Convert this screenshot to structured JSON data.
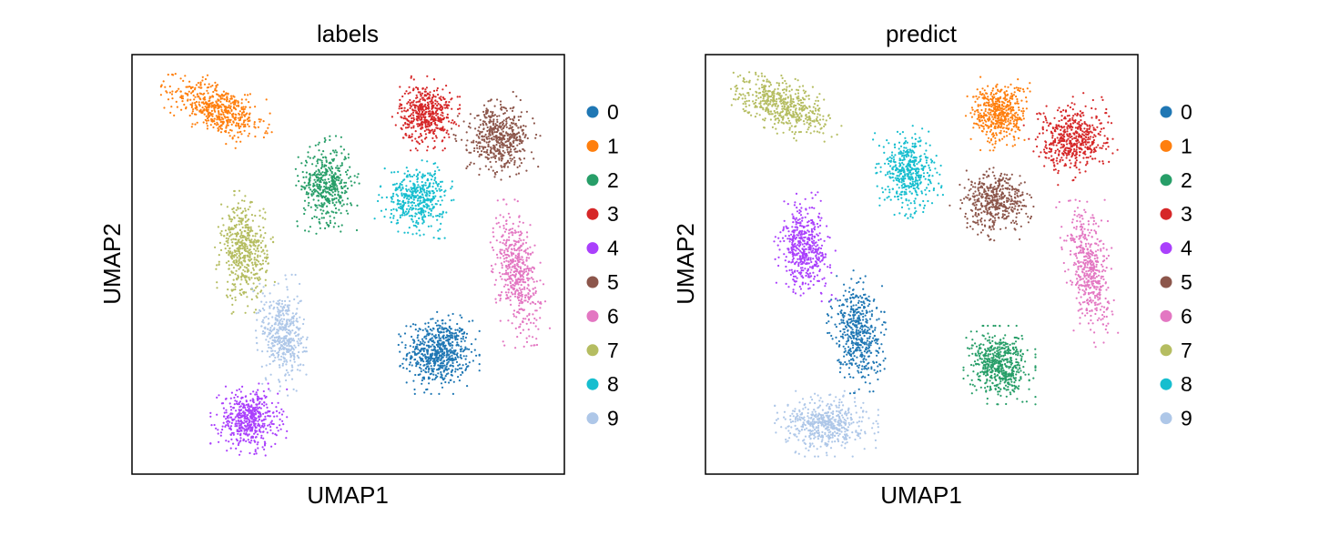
{
  "chart_data": [
    {
      "type": "scatter",
      "title": "labels",
      "xlabel": "UMAP1",
      "ylabel": "UMAP2",
      "grid": false,
      "legend_position": "right",
      "legend": [
        "0",
        "1",
        "2",
        "3",
        "4",
        "5",
        "6",
        "7",
        "8",
        "9"
      ],
      "colors": [
        "#1f77b4",
        "#ff7f0e",
        "#279e68",
        "#d62728",
        "#aa40fc",
        "#8c564b",
        "#e377c2",
        "#b5bd61",
        "#17becf",
        "#aec7e8"
      ],
      "xlim": [
        0,
        100
      ],
      "ylim": [
        0,
        100
      ],
      "clusters": [
        {
          "label": "0",
          "x": 71,
          "y": 29,
          "sx": 3.6,
          "sy": 3.8,
          "n": 650,
          "rot": 0
        },
        {
          "label": "1",
          "x": 20,
          "y": 87,
          "sx": 5.5,
          "sy": 2.6,
          "n": 520,
          "rot": -25
        },
        {
          "label": "2",
          "x": 45,
          "y": 69,
          "sx": 2.9,
          "sy": 4.4,
          "n": 450,
          "rot": 5
        },
        {
          "label": "3",
          "x": 68,
          "y": 86,
          "sx": 3.0,
          "sy": 3.4,
          "n": 480,
          "rot": 0
        },
        {
          "label": "4",
          "x": 27,
          "y": 13,
          "sx": 3.4,
          "sy": 3.3,
          "n": 500,
          "rot": 0
        },
        {
          "label": "5",
          "x": 85,
          "y": 80,
          "sx": 3.7,
          "sy": 3.6,
          "n": 520,
          "rot": 20
        },
        {
          "label": "6",
          "x": 89,
          "y": 48,
          "sx": 2.2,
          "sy": 6.8,
          "n": 500,
          "rot": 8
        },
        {
          "label": "7",
          "x": 26,
          "y": 53,
          "sx": 2.6,
          "sy": 5.6,
          "n": 520,
          "rot": 3
        },
        {
          "label": "8",
          "x": 66,
          "y": 66,
          "sx": 3.4,
          "sy": 3.4,
          "n": 450,
          "rot": -10
        },
        {
          "label": "9",
          "x": 35,
          "y": 33,
          "sx": 2.4,
          "sy": 5.5,
          "n": 450,
          "rot": 5
        }
      ]
    },
    {
      "type": "scatter",
      "title": "predict",
      "xlabel": "UMAP1",
      "ylabel": "UMAP2",
      "grid": false,
      "legend_position": "right",
      "legend": [
        "0",
        "1",
        "2",
        "3",
        "4",
        "5",
        "6",
        "7",
        "8",
        "9"
      ],
      "colors": [
        "#1f77b4",
        "#ff7f0e",
        "#279e68",
        "#d62728",
        "#aa40fc",
        "#8c564b",
        "#e377c2",
        "#b5bd61",
        "#17becf",
        "#aec7e8"
      ],
      "xlim": [
        0,
        100
      ],
      "ylim": [
        0,
        100
      ],
      "clusters": [
        {
          "label": "0",
          "x": 35,
          "y": 34,
          "sx": 2.6,
          "sy": 5.6,
          "n": 500,
          "rot": 5
        },
        {
          "label": "1",
          "x": 68,
          "y": 86,
          "sx": 3.0,
          "sy": 3.4,
          "n": 480,
          "rot": 0
        },
        {
          "label": "2",
          "x": 68,
          "y": 26,
          "sx": 3.2,
          "sy": 3.6,
          "n": 560,
          "rot": 0
        },
        {
          "label": "3",
          "x": 85,
          "y": 80,
          "sx": 3.7,
          "sy": 3.6,
          "n": 520,
          "rot": 20
        },
        {
          "label": "4",
          "x": 23,
          "y": 54,
          "sx": 2.7,
          "sy": 5.0,
          "n": 480,
          "rot": 3
        },
        {
          "label": "5",
          "x": 67,
          "y": 65,
          "sx": 3.5,
          "sy": 3.4,
          "n": 460,
          "rot": -25
        },
        {
          "label": "6",
          "x": 89,
          "y": 48,
          "sx": 2.2,
          "sy": 6.8,
          "n": 480,
          "rot": 8
        },
        {
          "label": "7",
          "x": 18,
          "y": 88,
          "sx": 5.5,
          "sy": 2.6,
          "n": 520,
          "rot": -25
        },
        {
          "label": "8",
          "x": 47,
          "y": 72,
          "sx": 2.9,
          "sy": 4.2,
          "n": 450,
          "rot": 5
        },
        {
          "label": "9",
          "x": 28,
          "y": 12,
          "sx": 4.6,
          "sy": 3.0,
          "n": 520,
          "rot": 0
        }
      ]
    }
  ]
}
